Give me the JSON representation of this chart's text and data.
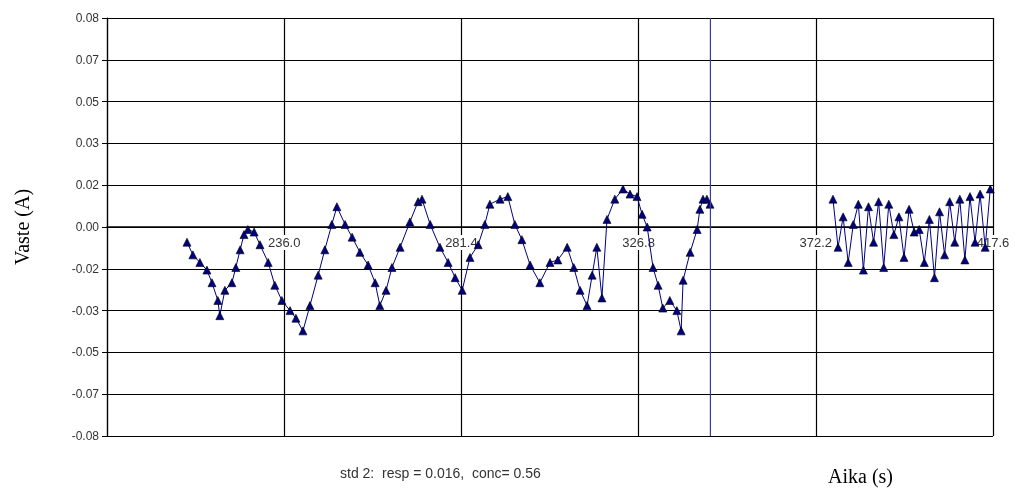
{
  "chart_data": {
    "type": "line",
    "xlabel": "Aika (s)",
    "ylabel": "Vaste (A)",
    "annotations": [
      "std 2:  resp = 0.016,  conc= 0.56"
    ],
    "xlim": [
      190.6,
      417.6
    ],
    "xticks": [
      {
        "value": 190.6,
        "label": null
      },
      {
        "value": 236.0,
        "label": "236.0"
      },
      {
        "value": 281.4,
        "label": "281.4"
      },
      {
        "value": 326.8,
        "label": "326.8"
      },
      {
        "value": 372.2,
        "label": "372.2"
      },
      {
        "value": 417.6,
        "label": "417.6"
      }
    ],
    "ylim": [
      -0.0825,
      0.0825
    ],
    "yticks": [
      {
        "value": -0.0825,
        "label": "-0.08"
      },
      {
        "value": -0.066,
        "label": "-0.07"
      },
      {
        "value": -0.0495,
        "label": "-0.05"
      },
      {
        "value": -0.033,
        "label": "-0.03"
      },
      {
        "value": -0.0165,
        "label": "-0.02"
      },
      {
        "value": 0,
        "label": "0.00"
      },
      {
        "value": 0.0165,
        "label": "0.02"
      },
      {
        "value": 0.033,
        "label": "0.03"
      },
      {
        "value": 0.0495,
        "label": "0.05"
      },
      {
        "value": 0.066,
        "label": "0.07"
      },
      {
        "value": 0.0825,
        "label": "0.08"
      }
    ],
    "grid": true,
    "marker": "triangle",
    "line_style": "solid",
    "ref_lines": [
      {
        "axis": "x",
        "value": 345.2,
        "color": "#3a3a9a"
      }
    ],
    "series": [
      {
        "color": "#000080",
        "x": [
          211.1,
          212.6,
          214.4,
          216.2,
          217.5,
          219.0,
          219.5,
          220.8,
          222.6,
          223.6,
          224.7,
          225.7,
          226.7,
          228.3,
          229.8,
          231.9,
          233.6,
          235.4,
          237.5,
          239.0,
          240.8,
          242.6,
          244.7,
          246.4,
          248.2,
          249.5,
          251.6,
          253.4,
          255.4,
          257.5,
          259.3,
          260.5,
          262.1,
          263.6,
          265.7,
          268.2,
          270.3,
          271.3,
          273.4,
          275.9,
          278.0,
          279.8,
          281.6,
          283.6,
          285.7,
          287.4,
          288.7,
          291.3,
          293.3,
          295.1,
          296.9,
          299.0,
          301.5,
          304.1,
          306.1,
          308.5,
          310.2,
          311.8,
          313.6,
          314.9,
          316.1,
          317.4,
          318.7,
          320.7,
          322.8,
          324.6,
          326.4,
          327.7,
          329.0,
          330.5,
          331.8,
          333.0,
          334.8,
          336.6,
          337.7,
          338.2,
          340.0,
          341.8,
          342.5,
          343.3,
          344.3,
          345.1,
          360.9,
          376.6,
          377.9,
          379.2,
          380.5,
          381.8,
          383.1,
          384.4,
          385.7,
          387.0,
          388.3,
          389.6,
          390.9,
          392.2,
          393.5,
          394.8,
          396.1,
          397.4,
          398.7,
          400.0,
          401.3,
          402.6,
          403.9,
          405.2,
          406.5,
          407.8,
          409.1,
          410.4,
          411.7,
          413.0,
          414.3,
          415.6,
          416.9
        ],
        "values": [
          -0.006,
          -0.011,
          -0.014,
          -0.017,
          -0.022,
          -0.029,
          -0.035,
          -0.025,
          -0.022,
          -0.016,
          -0.009,
          -0.003,
          -0.001,
          -0.002,
          -0.007,
          -0.014,
          -0.023,
          -0.029,
          -0.033,
          -0.036,
          -0.041,
          -0.031,
          -0.019,
          -0.009,
          0.001,
          0.008,
          0.001,
          -0.004,
          -0.01,
          -0.015,
          -0.022,
          -0.031,
          -0.025,
          -0.016,
          -0.008,
          0.002,
          0.01,
          0.011,
          0.001,
          -0.008,
          -0.014,
          -0.02,
          -0.025,
          -0.012,
          -0.007,
          0.001,
          0.009,
          0.011,
          0.012,
          0.001,
          -0.005,
          -0.015,
          -0.022,
          -0.014,
          -0.013,
          -0.008,
          -0.016,
          -0.025,
          -0.031,
          -0.019,
          -0.008,
          -0.028,
          0.003,
          0.011,
          0.015,
          0.013,
          0.012,
          0.005,
          0.0,
          -0.016,
          -0.023,
          -0.032,
          -0.029,
          -0.033,
          -0.041,
          -0.021,
          -0.01,
          -0.001,
          0.007,
          0.011,
          0.011,
          0.009,
          null,
          0.011,
          -0.008,
          0.004,
          -0.014,
          0.001,
          0.009,
          -0.017,
          0.008,
          -0.006,
          0.01,
          -0.016,
          0.009,
          -0.003,
          0.004,
          -0.012,
          0.007,
          -0.002,
          -0.001,
          -0.014,
          0.003,
          -0.02,
          0.006,
          -0.011,
          0.01,
          -0.006,
          0.011,
          -0.013,
          0.012,
          -0.006,
          0.013,
          -0.008,
          0.015
        ]
      }
    ]
  }
}
